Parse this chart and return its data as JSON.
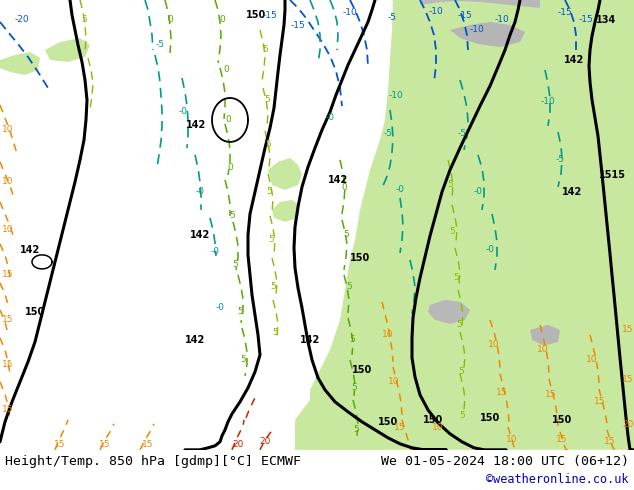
{
  "title_left": "Height/Temp. 850 hPa [gdmp][°C] ECMWF",
  "title_right": "We 01-05-2024 18:00 UTC (06+12)",
  "credit": "©weatheronline.co.uk",
  "text_color": "#000000",
  "credit_color": "#0000cc",
  "figwidth": 6.34,
  "figheight": 4.9,
  "dpi": 100,
  "title_fontsize": 9.5,
  "credit_fontsize": 8.5,
  "map_facecolor": "#d0d0d0",
  "land_gray": "#c8c8c8",
  "land_green_light": "#c8e8a0",
  "land_green_mid": "#b8e090",
  "ocean_gray": "#c0c0c8",
  "contour_black_lw": 2.2,
  "contour_cyan_lw": 1.1,
  "contour_green_lw": 1.0,
  "contour_orange_lw": 1.1,
  "color_cyan": "#00aadd",
  "color_blue": "#0055cc",
  "color_teal": "#009988",
  "color_green": "#55aa00",
  "color_lgreen": "#88bb00",
  "color_orange": "#ee8800",
  "color_red": "#cc2200"
}
